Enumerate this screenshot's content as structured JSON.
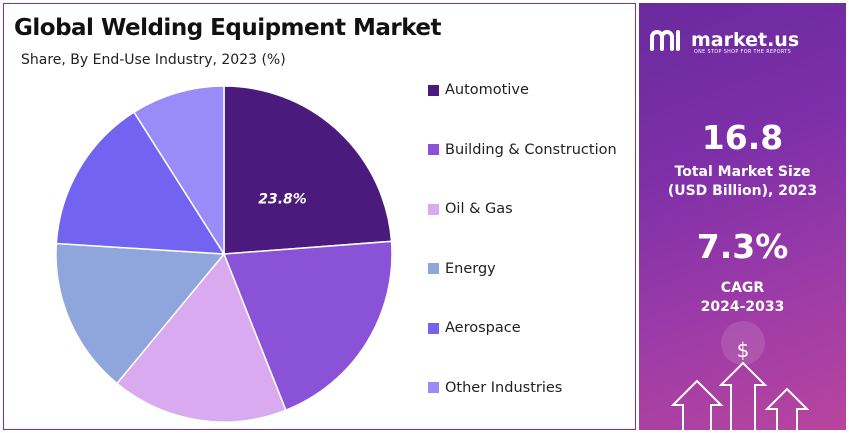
{
  "chart_data": {
    "type": "pie",
    "title": "Global Welding Equipment Market",
    "subtitle": "Share, By End-Use Industry, 2023 (%)",
    "categories": [
      "Automotive",
      "Building & Construction",
      "Oil & Gas",
      "Energy",
      "Aerospace",
      "Other Industries"
    ],
    "values": [
      23.8,
      20.2,
      17.0,
      15.0,
      15.0,
      9.0
    ],
    "data_labels": [
      "23.8%",
      "",
      "",
      "",
      "",
      ""
    ],
    "colors": [
      "#4a1a7c",
      "#8a52d6",
      "#d9aaf0",
      "#8fa6dc",
      "#7264f0",
      "#9a8cf8"
    ],
    "legend_position": "right"
  },
  "brand": {
    "name": "market.us",
    "tagline": "ONE STOP SHOP FOR THE REPORTS"
  },
  "stats": {
    "market_size_value": "16.8",
    "market_size_label_line1": "Total Market Size",
    "market_size_label_line2": "(USD Billion), 2023",
    "cagr_value": "7.3%",
    "cagr_label_line1": "CAGR",
    "cagr_label_line2": "2024-2033"
  },
  "icons": {
    "brand": "market-us-logo-icon",
    "dollar": "dollar-icon",
    "arrows": "up-arrow-icon"
  }
}
